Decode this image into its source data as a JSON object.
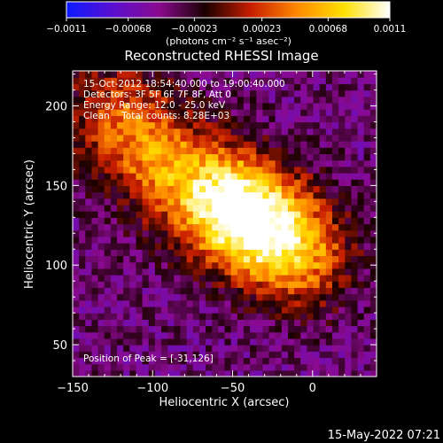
{
  "chart_data": {
    "type": "heatmap",
    "title": "Reconstructed RHESSI Image",
    "xlabel": "Heliocentric X (arcsec)",
    "ylabel": "Heliocentric Y (arcsec)",
    "xlim": [
      -150,
      40
    ],
    "ylim": [
      30,
      222
    ],
    "x_ticks": [
      -150,
      -100,
      -50,
      0
    ],
    "x_tick_labels": [
      "−150",
      "−100",
      "−50",
      "0"
    ],
    "y_ticks": [
      50,
      100,
      150,
      200
    ],
    "y_tick_labels": [
      "50",
      "100",
      "150",
      "200"
    ],
    "colorbar": {
      "min": -0.0011,
      "max": 0.0011,
      "tick_labels": [
        "−0.0011",
        "−0.00068",
        "−0.00023",
        "0.00023",
        "0.00068",
        "0.0011"
      ],
      "units_label": "(photons cm⁻² s⁻¹ asec⁻²)",
      "colors": [
        "#0a1aff",
        "#5a0fd0",
        "#8a0a90",
        "#1a0000",
        "#c81e00",
        "#ff8a00",
        "#ffe000",
        "#ffffff"
      ]
    },
    "info_lines": [
      "15-Oct-2012 18:54:40.000 to 19:00:40.000",
      "Detectors: 3F 5F 6F 7F 8F, Att 0",
      "Energy Range: 12.0 - 25.0 keV",
      "Clean    Total counts: 8.28E+03"
    ],
    "peak_label": "Position of Peak = [-31,126]",
    "peak": {
      "x": -31,
      "y": 126
    },
    "sources": [
      {
        "x": -58,
        "y": 141,
        "amp": 0.0011
      },
      {
        "x": -33,
        "y": 126,
        "amp": 0.00098
      },
      {
        "x": -8,
        "y": 106,
        "amp": 0.00078
      },
      {
        "x": -98,
        "y": 168,
        "amp": 0.0007
      },
      {
        "x": -125,
        "y": 198,
        "amp": 0.00055
      }
    ]
  },
  "footer": {
    "timestamp": "15-May-2022 07:21"
  }
}
